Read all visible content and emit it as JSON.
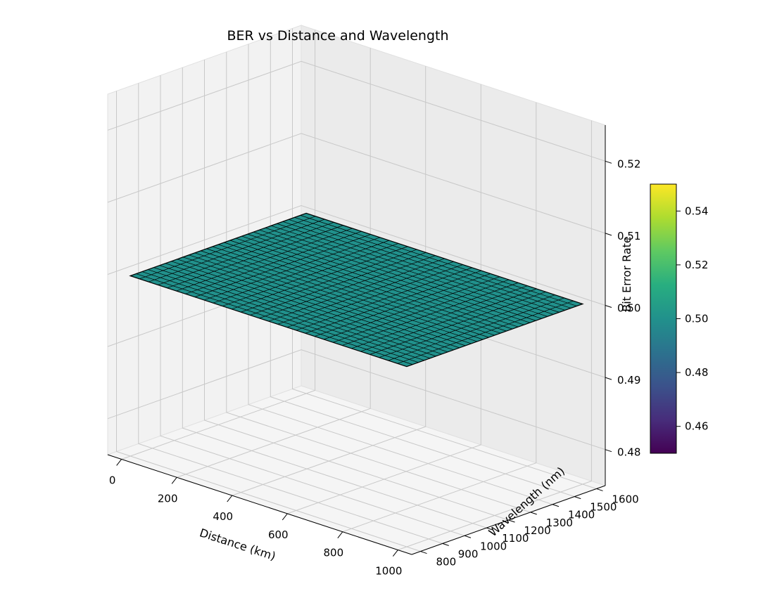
{
  "chart_data": {
    "type": "surface",
    "title": "BER vs Distance and Wavelength",
    "xlabel": "Distance (km)",
    "ylabel": "Wavelength (nm)",
    "zlabel": "Bit Error Rate",
    "x_ticks": [
      "0",
      "200",
      "400",
      "600",
      "800",
      "1000"
    ],
    "y_ticks": [
      "800",
      "900",
      "1000",
      "1100",
      "1200",
      "1300",
      "1400",
      "1500",
      "1600"
    ],
    "z_ticks": [
      "0.48",
      "0.49",
      "0.50",
      "0.51",
      "0.52"
    ],
    "xlim": [
      -50,
      1050
    ],
    "ylim": [
      760,
      1640
    ],
    "zlim": [
      0.475,
      0.525
    ],
    "surface": {
      "x_range": [
        0,
        1000
      ],
      "y_range": [
        800,
        1600
      ],
      "grid": [
        30,
        30
      ],
      "z_value": 0.5
    },
    "surface_color": "#21918c",
    "edge_color": "#000000",
    "colorbar": {
      "colormap": "viridis",
      "range": [
        0.45,
        0.55
      ],
      "ticks": [
        "0.46",
        "0.48",
        "0.50",
        "0.52",
        "0.54"
      ]
    },
    "grid": true
  }
}
